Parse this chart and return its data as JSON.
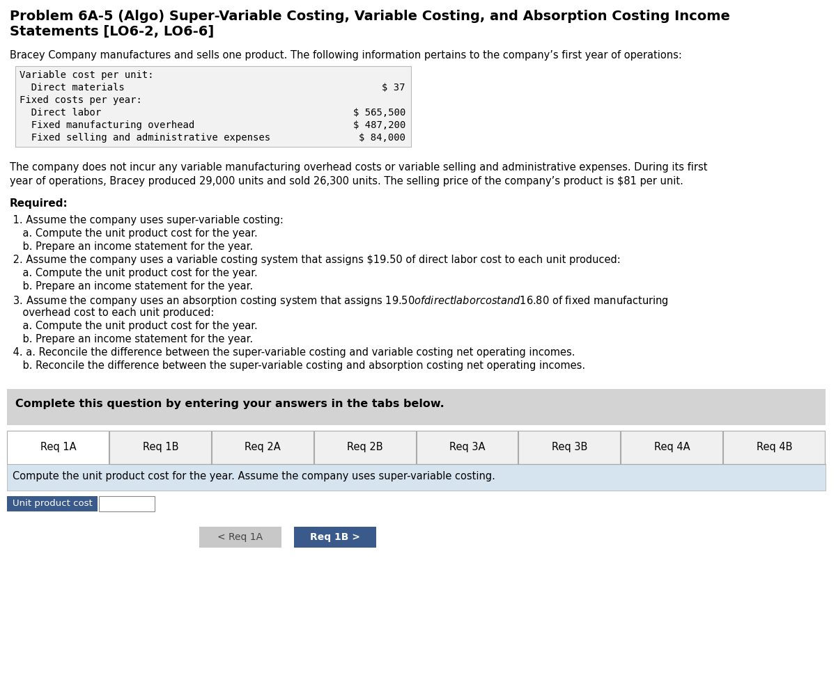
{
  "title_line1": "Problem 6A-5 (Algo) Super-Variable Costing, Variable Costing, and Absorption Costing Income",
  "title_line2": "Statements [LO6-2, LO6-6]",
  "intro_text": "Bracey Company manufactures and sells one product. The following information pertains to the company’s first year of operations:",
  "table_rows": [
    {
      "label": "Variable cost per unit:",
      "value": ""
    },
    {
      "label": "  Direct materials",
      "value": "$ 37"
    },
    {
      "label": "Fixed costs per year:",
      "value": ""
    },
    {
      "label": "  Direct labor",
      "value": "$ 565,500"
    },
    {
      "label": "  Fixed manufacturing overhead",
      "value": "$ 487,200"
    },
    {
      "label": "  Fixed selling and administrative expenses",
      "value": "$ 84,000"
    }
  ],
  "para2_line1": "The company does not incur any variable manufacturing overhead costs or variable selling and administrative expenses. During its first",
  "para2_line2": "year of operations, Bracey produced 29,000 units and sold 26,300 units. The selling price of the company’s product is $81 per unit.",
  "required_label": "Required:",
  "required_items": [
    " 1. Assume the company uses super-variable costing:",
    "    a. Compute the unit product cost for the year.",
    "    b. Prepare an income statement for the year.",
    " 2. Assume the company uses a variable costing system that assigns $19.50 of direct labor cost to each unit produced:",
    "    a. Compute the unit product cost for the year.",
    "    b. Prepare an income statement for the year.",
    " 3. Assume the company uses an absorption costing system that assigns $19.50 of direct labor cost and $16.80 of fixed manufacturing",
    "    overhead cost to each unit produced:",
    "    a. Compute the unit product cost for the year.",
    "    b. Prepare an income statement for the year.",
    " 4. a. Reconcile the difference between the super-variable costing and variable costing net operating incomes.",
    "    b. Reconcile the difference between the super-variable costing and absorption costing net operating incomes."
  ],
  "complete_text": "Complete this question by entering your answers in the tabs below.",
  "tabs": [
    "Req 1A",
    "Req 1B",
    "Req 2A",
    "Req 2B",
    "Req 3A",
    "Req 3B",
    "Req 4A",
    "Req 4B"
  ],
  "active_tab": "Req 1A",
  "instruction_text": "Compute the unit product cost for the year. Assume the company uses super-variable costing.",
  "field_label": "Unit product cost",
  "nav_back": "< Req 1A",
  "nav_fwd": "Req 1B >",
  "bg_color": "#ffffff",
  "tab_bg": "#f0f0f0",
  "active_tab_bg": "#ffffff",
  "complete_section_bg": "#d3d3d3",
  "instruction_bg": "#d6e4f0",
  "nav_back_color": "#c8c8c8",
  "nav_fwd_color": "#3a5a8c",
  "field_label_bg": "#3a5a8c",
  "field_label_fg": "#ffffff",
  "table_bg": "#f2f2f2",
  "table_border": "#bbbbbb",
  "text_color": "#000000"
}
